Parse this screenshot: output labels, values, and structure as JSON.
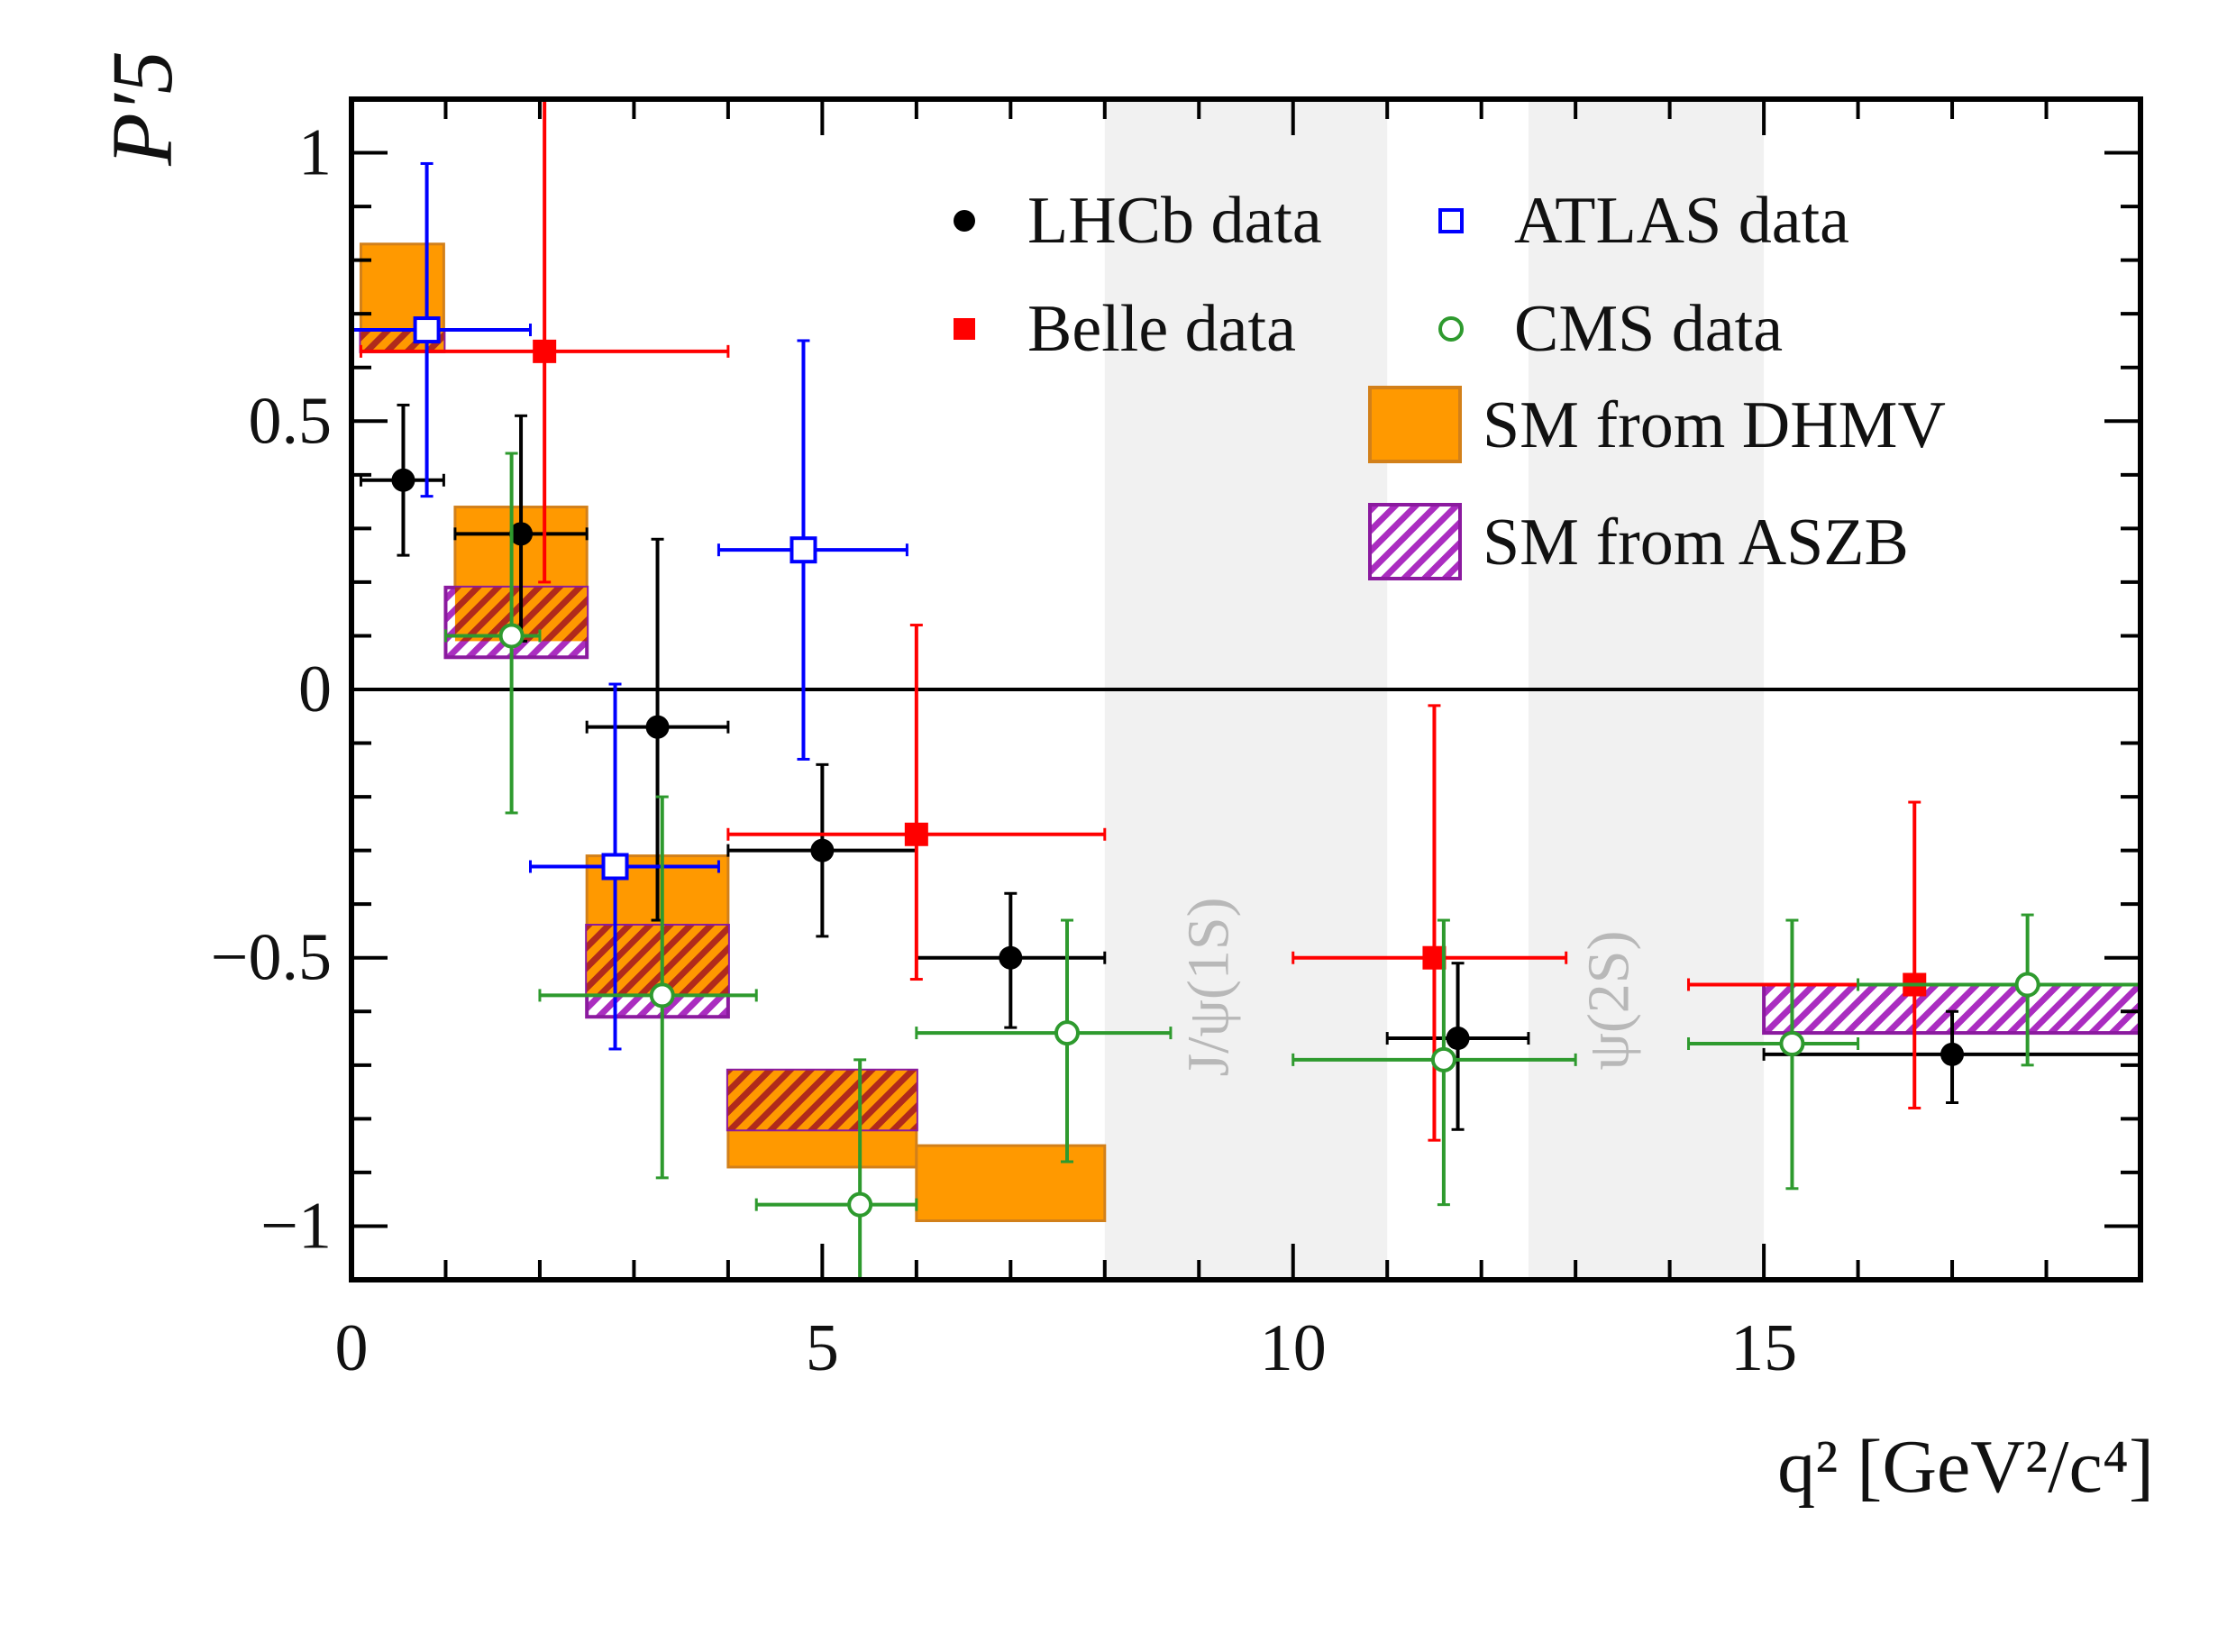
{
  "chart_data": {
    "type": "scatter",
    "xlabel": "q² [GeV²/c⁴]",
    "ylabel": "P′5",
    "xlim": [
      0,
      19
    ],
    "ylim": [
      -1.1,
      1.1
    ],
    "x_ticks": [
      "0",
      "5",
      "10",
      "15"
    ],
    "y_ticks": [
      "−1",
      "−0.5",
      "0",
      "0.5",
      "1"
    ],
    "zero_line": true,
    "legend_placement": "top-right",
    "excluded_regions": [
      {
        "label": "J/ψ(1S)",
        "x": [
          8,
          11
        ]
      },
      {
        "label": "ψ(2S)",
        "x": [
          12.5,
          15
        ]
      }
    ],
    "series": [
      {
        "name": "LHCb data",
        "color": "#000000",
        "marker": "filled-circle",
        "points": [
          {
            "x": 0.55,
            "xlo": 0.1,
            "xhi": 0.98,
            "y": 0.39,
            "ylo": 0.25,
            "yhi": 0.53
          },
          {
            "x": 1.8,
            "xlo": 1.1,
            "xhi": 2.5,
            "y": 0.29,
            "ylo": 0.09,
            "yhi": 0.51
          },
          {
            "x": 3.25,
            "xlo": 2.5,
            "xhi": 4.0,
            "y": -0.07,
            "ylo": -0.43,
            "yhi": 0.28
          },
          {
            "x": 5.0,
            "xlo": 4.0,
            "xhi": 6.0,
            "y": -0.3,
            "ylo": -0.46,
            "yhi": -0.14
          },
          {
            "x": 7.0,
            "xlo": 6.0,
            "xhi": 8.0,
            "y": -0.5,
            "ylo": -0.63,
            "yhi": -0.38
          },
          {
            "x": 11.75,
            "xlo": 11.0,
            "xhi": 12.5,
            "y": -0.65,
            "ylo": -0.82,
            "yhi": -0.51
          },
          {
            "x": 17.0,
            "xlo": 15.0,
            "xhi": 19.0,
            "y": -0.68,
            "ylo": -0.77,
            "yhi": -0.6
          }
        ]
      },
      {
        "name": "Belle data",
        "color": "#ff0000",
        "marker": "filled-square",
        "points": [
          {
            "x": 2.05,
            "xlo": 0.1,
            "xhi": 4.0,
            "y": 0.63,
            "ylo": 0.2,
            "yhi": 1.1
          },
          {
            "x": 6.0,
            "xlo": 4.0,
            "xhi": 8.0,
            "y": -0.27,
            "ylo": -0.54,
            "yhi": 0.12
          },
          {
            "x": 11.5,
            "xlo": 10.0,
            "xhi": 12.9,
            "y": -0.5,
            "ylo": -0.84,
            "yhi": -0.03
          },
          {
            "x": 16.6,
            "xlo": 14.2,
            "xhi": 19.0,
            "y": -0.55,
            "ylo": -0.78,
            "yhi": -0.21
          }
        ]
      },
      {
        "name": "ATLAS data",
        "color": "#0000ff",
        "marker": "open-square",
        "points": [
          {
            "x": 0.8,
            "xlo": 0.0,
            "xhi": 1.9,
            "y": 0.67,
            "ylo": 0.36,
            "yhi": 0.98
          },
          {
            "x": 2.8,
            "xlo": 1.9,
            "xhi": 3.9,
            "y": -0.33,
            "ylo": -0.67,
            "yhi": 0.01
          },
          {
            "x": 4.8,
            "xlo": 3.9,
            "xhi": 5.9,
            "y": 0.26,
            "ylo": -0.13,
            "yhi": 0.65
          }
        ]
      },
      {
        "name": "CMS data",
        "color": "#2e9a2e",
        "marker": "open-circle",
        "points": [
          {
            "x": 1.7,
            "xlo": 1.0,
            "xhi": 2.0,
            "y": 0.1,
            "ylo": -0.23,
            "yhi": 0.44
          },
          {
            "x": 3.3,
            "xlo": 2.0,
            "xhi": 4.3,
            "y": -0.57,
            "ylo": -0.91,
            "yhi": -0.2
          },
          {
            "x": 5.4,
            "xlo": 4.3,
            "xhi": 6.0,
            "y": -0.96,
            "ylo": -1.1,
            "yhi": -0.69
          },
          {
            "x": 7.6,
            "xlo": 6.0,
            "xhi": 8.7,
            "y": -0.64,
            "ylo": -0.88,
            "yhi": -0.43
          },
          {
            "x": 11.6,
            "xlo": 10.0,
            "xhi": 13.0,
            "y": -0.69,
            "ylo": -0.96,
            "yhi": -0.43
          },
          {
            "x": 15.3,
            "xlo": 14.2,
            "xhi": 16.0,
            "y": -0.66,
            "ylo": -0.93,
            "yhi": -0.43
          },
          {
            "x": 17.8,
            "xlo": 16.0,
            "xhi": 19.0,
            "y": -0.55,
            "ylo": -0.7,
            "yhi": -0.42
          }
        ]
      }
    ],
    "predictions": [
      {
        "name": "SM from DHMV",
        "color": "#ff9900",
        "border": "#d2801a",
        "fill": "solid",
        "bins": [
          {
            "x0": 0.1,
            "x1": 0.98,
            "y0": 0.63,
            "y1": 0.83
          },
          {
            "x0": 1.1,
            "x1": 2.5,
            "y0": 0.09,
            "y1": 0.34
          },
          {
            "x0": 2.5,
            "x1": 4.0,
            "y0": -0.57,
            "y1": -0.31
          },
          {
            "x0": 4.0,
            "x1": 6.0,
            "y0": -0.89,
            "y1": -0.71
          },
          {
            "x0": 6.0,
            "x1": 8.0,
            "y0": -0.99,
            "y1": -0.85
          }
        ]
      },
      {
        "name": "SM from ASZB",
        "color": "#aa2dc0",
        "border": "#8b1a9f",
        "fill": "hatched",
        "bins": [
          {
            "x0": 0.1,
            "x1": 0.98,
            "y0": 0.63,
            "y1": 0.67
          },
          {
            "x0": 1.0,
            "x1": 2.5,
            "y0": 0.06,
            "y1": 0.19
          },
          {
            "x0": 2.5,
            "x1": 4.0,
            "y0": -0.61,
            "y1": -0.44
          },
          {
            "x0": 4.0,
            "x1": 6.0,
            "y0": -0.82,
            "y1": -0.71
          },
          {
            "x0": 15.0,
            "x1": 19.0,
            "y0": -0.64,
            "y1": -0.55
          }
        ]
      }
    ]
  }
}
